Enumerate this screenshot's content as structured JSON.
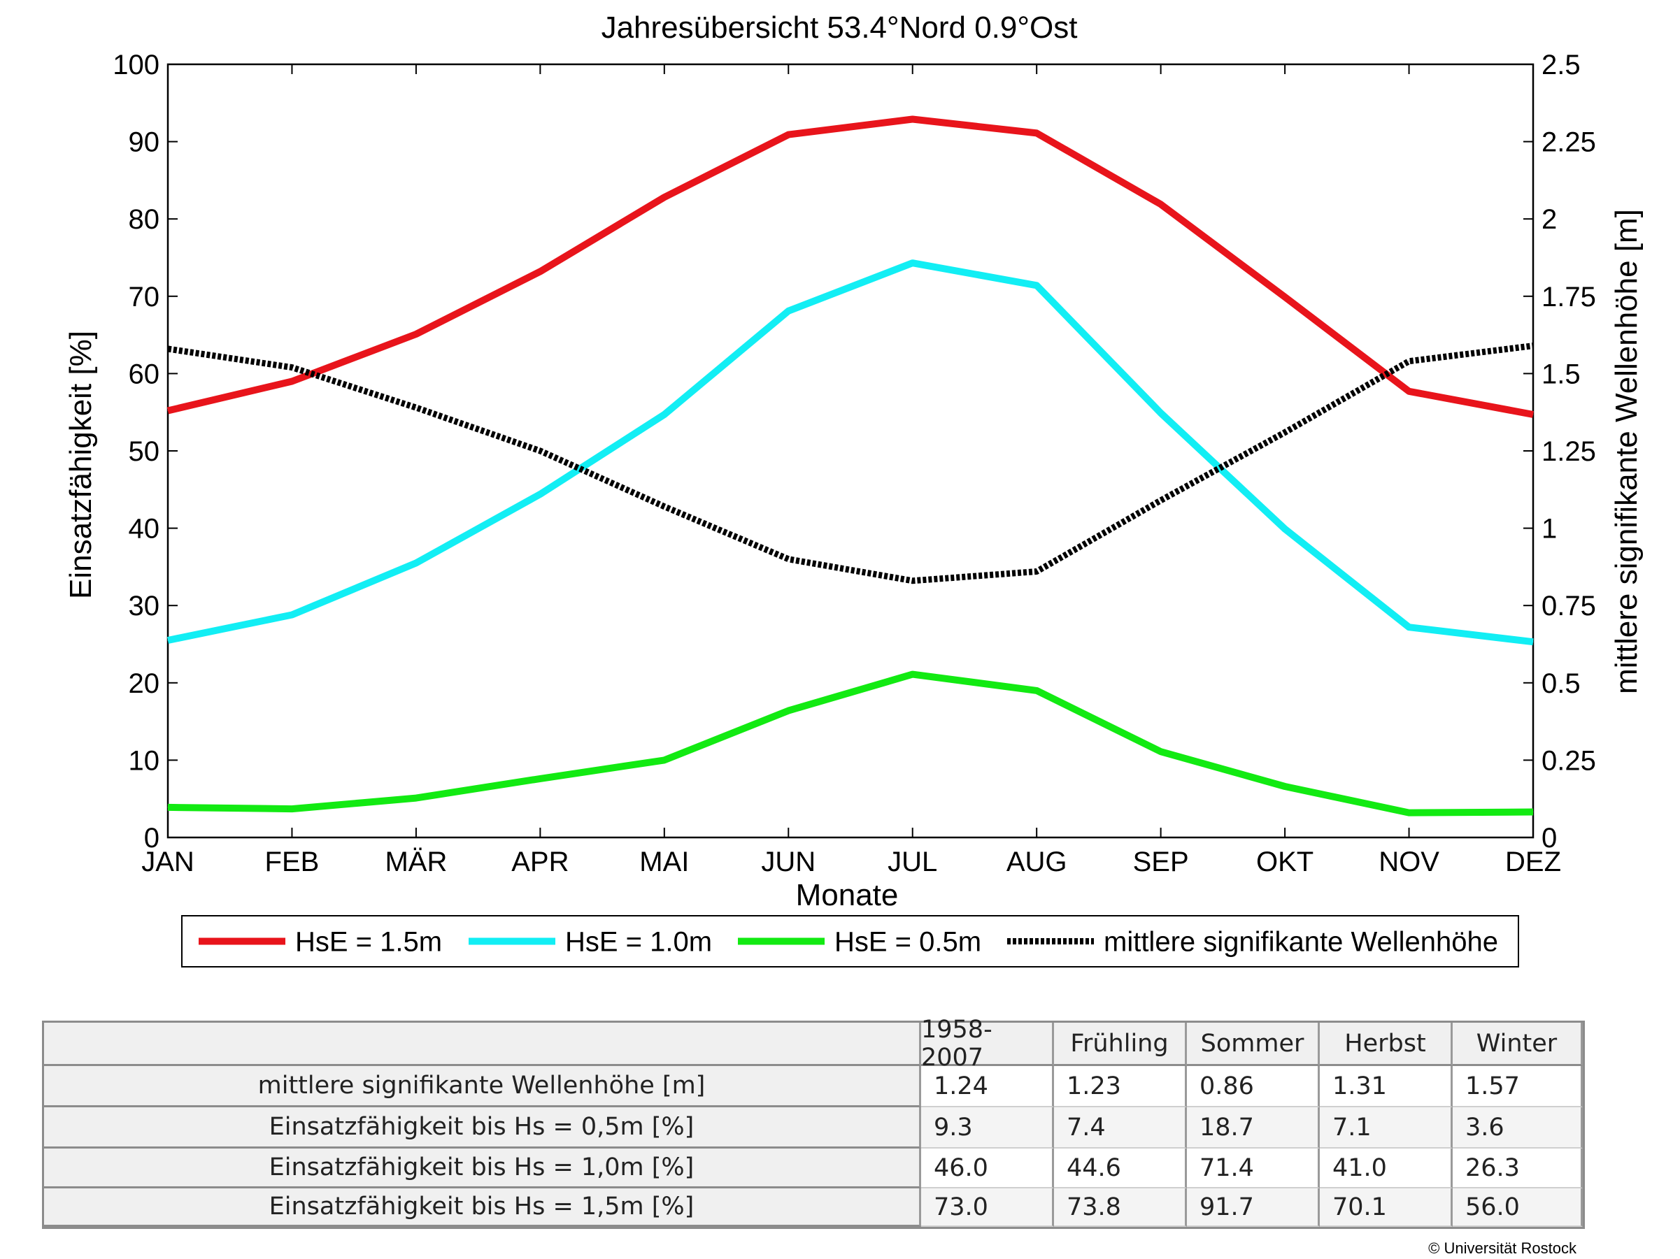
{
  "chart_data": {
    "type": "line",
    "title": "Jahresübersicht  53.4°Nord  0.9°Ost",
    "xlabel": "Monate",
    "ylabel": "Einsatzfähigkeit [%]",
    "ylabel_right": "mittlere signifikante Wellenhöhe [m]",
    "categories": [
      "JAN",
      "FEB",
      "MÄR",
      "APR",
      "MAI",
      "JUN",
      "JUL",
      "AUG",
      "SEP",
      "OKT",
      "NOV",
      "DEZ"
    ],
    "ylim": [
      0,
      100
    ],
    "yticks": [
      "0",
      "10",
      "20",
      "30",
      "40",
      "50",
      "60",
      "70",
      "80",
      "90",
      "100"
    ],
    "ylim_right": [
      0,
      2.5
    ],
    "yticks_right": [
      "0",
      "0.25",
      "0.5",
      "0.75",
      "1",
      "1.25",
      "1.5",
      "1.75",
      "2",
      "2.25",
      "2.5"
    ],
    "grid": false,
    "legend_position": "bottom",
    "series": [
      {
        "name": "HsE = 1.5m",
        "axis": "left",
        "color": "#e8141b",
        "style": "solid",
        "values": [
          55.2,
          59.0,
          65.1,
          73.2,
          82.8,
          90.9,
          92.9,
          91.1,
          81.9,
          69.9,
          57.7,
          54.7
        ]
      },
      {
        "name": "HsE = 1.0m",
        "axis": "left",
        "color": "#12eef4",
        "style": "solid",
        "values": [
          25.5,
          28.8,
          35.5,
          44.4,
          54.7,
          68.1,
          74.3,
          71.4,
          54.9,
          39.9,
          27.2,
          25.3
        ]
      },
      {
        "name": "HsE = 0.5m",
        "axis": "left",
        "color": "#12ea12",
        "style": "solid",
        "values": [
          3.9,
          3.7,
          5.1,
          7.6,
          10.0,
          16.4,
          21.1,
          19.0,
          11.1,
          6.6,
          3.2,
          3.3
        ]
      },
      {
        "name": "mittlere signifikante Wellenhöhe",
        "axis": "right",
        "color": "#000000",
        "style": "dotted",
        "values": [
          1.58,
          1.52,
          1.39,
          1.25,
          1.07,
          0.9,
          0.83,
          0.86,
          1.09,
          1.31,
          1.54,
          1.59
        ]
      }
    ]
  },
  "table": {
    "headers": [
      "1958-2007",
      "Frühling",
      "Sommer",
      "Herbst",
      "Winter"
    ],
    "rows": [
      {
        "label": "mittlere signifikante Wellenhöhe [m]",
        "values": [
          "1.24",
          "1.23",
          "0.86",
          "1.31",
          "1.57"
        ]
      },
      {
        "label": "Einsatzfähigkeit bis Hs = 0,5m [%]",
        "values": [
          "9.3",
          "7.4",
          "18.7",
          "7.1",
          "3.6"
        ]
      },
      {
        "label": "Einsatzfähigkeit bis Hs = 1,0m [%]",
        "values": [
          "46.0",
          "44.6",
          "71.4",
          "41.0",
          "26.3"
        ]
      },
      {
        "label": "Einsatzfähigkeit bis Hs = 1,5m [%]",
        "values": [
          "73.0",
          "73.8",
          "91.7",
          "70.1",
          "56.0"
        ]
      }
    ]
  },
  "footer": {
    "copyright": "© Universität Rostock"
  }
}
